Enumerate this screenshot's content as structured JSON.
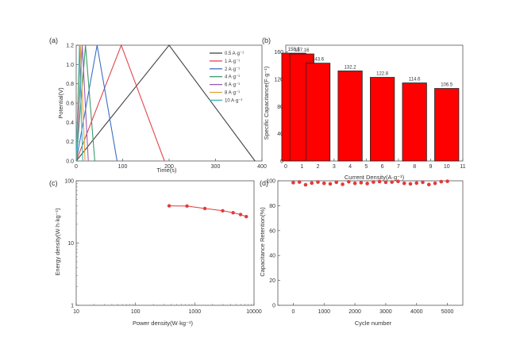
{
  "chart_data": [
    {
      "panel": "(a)",
      "type": "line",
      "xlabel": "Time(s)",
      "ylabel": "Potential(V)",
      "xlim": [
        0,
        400
      ],
      "ylim": [
        0,
        1.2
      ],
      "xticks": [
        0,
        100,
        200,
        300,
        400
      ],
      "yticks": [
        0.0,
        0.2,
        0.4,
        0.6,
        0.8,
        1.0,
        1.2
      ],
      "ytick_labels": [
        "0.0",
        "0.2",
        "0.4",
        "0.6",
        "0.8",
        "1.0",
        "1.2"
      ],
      "legend_position": "top-right",
      "series": [
        {
          "name": "0.5 A·g⁻¹",
          "color": "#444444",
          "x": [
            0,
            200,
            385
          ],
          "y": [
            0,
            1.2,
            0
          ]
        },
        {
          "name": "1 A·g⁻¹",
          "color": "#e0474c",
          "x": [
            0,
            97,
            190
          ],
          "y": [
            0,
            1.2,
            0
          ]
        },
        {
          "name": "2 A·g⁻¹",
          "color": "#3d6fc4",
          "x": [
            0,
            45,
            88
          ],
          "y": [
            0,
            1.2,
            0
          ]
        },
        {
          "name": "4 A·g⁻¹",
          "color": "#3a9a6a",
          "x": [
            0,
            20,
            40
          ],
          "y": [
            0,
            1.2,
            0
          ]
        },
        {
          "name": "6 A·g⁻¹",
          "color": "#9a5bb5",
          "x": [
            0,
            13,
            26
          ],
          "y": [
            0,
            1.2,
            0
          ]
        },
        {
          "name": "8 A·g⁻¹",
          "color": "#e6a23c",
          "x": [
            0,
            9,
            19
          ],
          "y": [
            0,
            1.2,
            0
          ]
        },
        {
          "name": "10 A·g⁻¹",
          "color": "#3bb3b8",
          "x": [
            0,
            7,
            14
          ],
          "y": [
            0,
            1.2,
            0
          ]
        }
      ]
    },
    {
      "panel": "(b)",
      "type": "bar",
      "xlabel": "Current Density(A·g⁻¹)",
      "ylabel": "Specific Capacitance(F·g⁻¹)",
      "xlim": [
        0,
        11
      ],
      "ylim": [
        0,
        170
      ],
      "xticks": [
        0,
        1,
        2,
        3,
        4,
        5,
        6,
        7,
        8,
        9,
        10,
        11
      ],
      "yticks": [
        0,
        40,
        80,
        120,
        160
      ],
      "bar_color": "#ff0000",
      "x": [
        0.5,
        1,
        2,
        4,
        6,
        8,
        10
      ],
      "values": [
        158.3,
        157.16,
        143.6,
        132.2,
        122.8,
        114.6,
        106.5
      ],
      "labels": [
        "158.3",
        "157.16",
        "143.6",
        "132.2",
        "122.8",
        "114.6",
        "106.5"
      ]
    },
    {
      "panel": "(c)",
      "type": "line",
      "xscale": "log",
      "yscale": "log",
      "xlabel": "Power density(W·kg⁻¹)",
      "ylabel": "Energy density(W·h·kg⁻¹)",
      "xlim": [
        10,
        10000
      ],
      "ylim": [
        1,
        100
      ],
      "xticks": [
        10,
        100,
        1000,
        10000
      ],
      "yticks": [
        1,
        10,
        100
      ],
      "color": "#e23b3b",
      "x": [
        370,
        740,
        1480,
        2960,
        4440,
        5920,
        7400
      ],
      "y": [
        39.6,
        39.3,
        35.9,
        33.0,
        30.7,
        28.7,
        26.6
      ]
    },
    {
      "panel": "(d)",
      "type": "scatter",
      "xlabel": "Cycle number",
      "ylabel": "Capacitance Retention(%)",
      "xlim": [
        -500,
        5500
      ],
      "ylim": [
        0,
        100
      ],
      "xticks": [
        0,
        1000,
        2000,
        3000,
        4000,
        5000
      ],
      "yticks": [
        0,
        20,
        40,
        60,
        80,
        100
      ],
      "color": "#e23b3b",
      "x": [
        0,
        200,
        400,
        600,
        800,
        1000,
        1200,
        1400,
        1600,
        1800,
        2000,
        2200,
        2400,
        2600,
        2800,
        3000,
        3200,
        3400,
        3600,
        3800,
        4000,
        4200,
        4400,
        4600,
        4800,
        5000
      ],
      "y": [
        98.5,
        99.0,
        96.8,
        98.2,
        99.0,
        98.0,
        97.5,
        98.8,
        97.2,
        99.2,
        98.0,
        98.5,
        97.8,
        99.0,
        99.4,
        98.8,
        99.0,
        99.5,
        98.0,
        97.5,
        98.2,
        98.8,
        97.0,
        98.0,
        99.3,
        99.6
      ]
    }
  ]
}
